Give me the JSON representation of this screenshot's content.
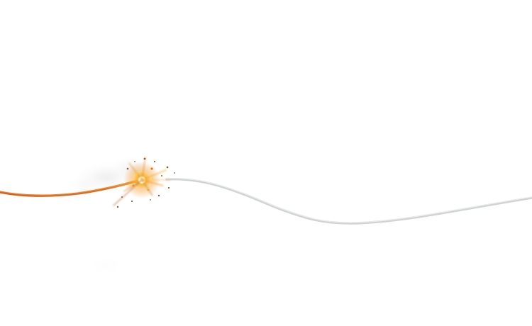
{
  "scene": {
    "subject": "burning-fuse",
    "colors": {
      "background": "#ffffff",
      "fuse_unburnt": "#d9dcdc",
      "fuse_burnt": "#d9601a",
      "spark_core": "#fff6b0",
      "spark_glow": "#ffb21c",
      "spark_outer": "#f07a10",
      "debris": "#8a5a2a",
      "smoke": "#e6e6e6"
    }
  }
}
